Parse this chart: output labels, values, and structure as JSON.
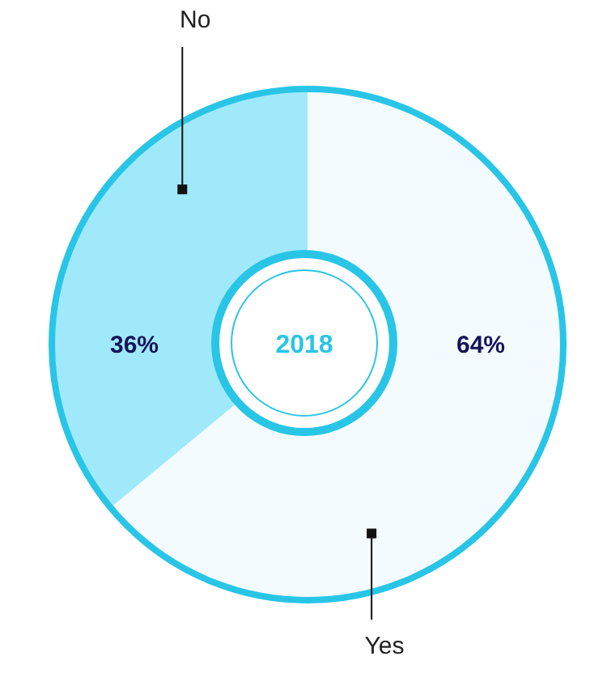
{
  "chart_data": {
    "type": "pie",
    "categories": [
      "Yes",
      "No"
    ],
    "values": [
      64,
      36
    ],
    "colors": [
      "#f3fbfe",
      "#a0e9fb"
    ],
    "value_labels": [
      "64%",
      "36%"
    ],
    "annotations": [
      "2018"
    ]
  }
}
